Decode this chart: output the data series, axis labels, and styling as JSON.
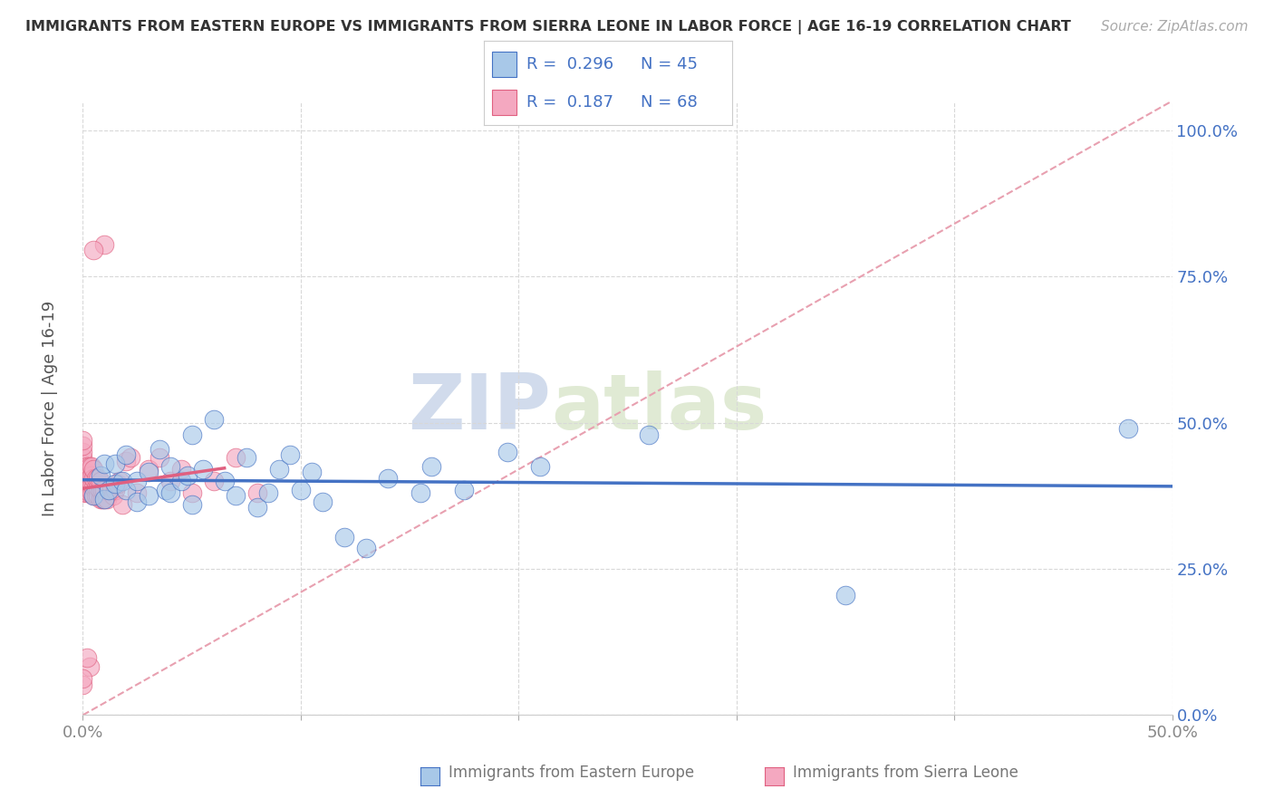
{
  "title": "IMMIGRANTS FROM EASTERN EUROPE VS IMMIGRANTS FROM SIERRA LEONE IN LABOR FORCE | AGE 16-19 CORRELATION CHART",
  "source": "Source: ZipAtlas.com",
  "ylabel": "In Labor Force | Age 16-19",
  "xlim": [
    0.0,
    0.5
  ],
  "ylim": [
    0.0,
    1.05
  ],
  "x_ticks": [
    0.0,
    0.1,
    0.2,
    0.3,
    0.4,
    0.5
  ],
  "x_tick_labels": [
    "0.0%",
    "",
    "",
    "",
    "",
    "50.0%"
  ],
  "y_ticks": [
    0.0,
    0.25,
    0.5,
    0.75,
    1.0
  ],
  "y_tick_labels": [
    "0.0%",
    "25.0%",
    "50.0%",
    "75.0%",
    "100.0%"
  ],
  "legend1_r": "0.296",
  "legend1_n": "45",
  "legend2_r": "0.187",
  "legend2_n": "68",
  "series1_label": "Immigrants from Eastern Europe",
  "series2_label": "Immigrants from Sierra Leone",
  "series1_color": "#a8c8e8",
  "series2_color": "#f4a8c0",
  "series1_edge_color": "#4472c4",
  "series2_edge_color": "#e06080",
  "series1_line_color": "#4472c4",
  "series2_line_color": "#e06080",
  "ref_line_color": "#e8a0b0",
  "background_color": "#ffffff",
  "watermark_text": "ZIPatlas",
  "series1_x": [
    0.005,
    0.008,
    0.01,
    0.01,
    0.012,
    0.015,
    0.015,
    0.018,
    0.02,
    0.02,
    0.025,
    0.025,
    0.03,
    0.03,
    0.035,
    0.038,
    0.04,
    0.04,
    0.045,
    0.048,
    0.05,
    0.05,
    0.055,
    0.06,
    0.065,
    0.07,
    0.075,
    0.08,
    0.085,
    0.09,
    0.095,
    0.1,
    0.105,
    0.11,
    0.12,
    0.13,
    0.14,
    0.155,
    0.16,
    0.175,
    0.195,
    0.21,
    0.26,
    0.35,
    0.48
  ],
  "series1_y": [
    0.375,
    0.41,
    0.37,
    0.43,
    0.385,
    0.395,
    0.43,
    0.4,
    0.385,
    0.445,
    0.365,
    0.4,
    0.375,
    0.415,
    0.455,
    0.385,
    0.38,
    0.425,
    0.4,
    0.41,
    0.48,
    0.36,
    0.42,
    0.505,
    0.4,
    0.375,
    0.44,
    0.355,
    0.38,
    0.42,
    0.445,
    0.385,
    0.415,
    0.365,
    0.305,
    0.285,
    0.405,
    0.38,
    0.425,
    0.385,
    0.45,
    0.425,
    0.48,
    0.205,
    0.49
  ],
  "series2_x": [
    0.0,
    0.0,
    0.0,
    0.0,
    0.0,
    0.0,
    0.0,
    0.0,
    0.0,
    0.0,
    0.001,
    0.001,
    0.001,
    0.001,
    0.002,
    0.002,
    0.002,
    0.002,
    0.003,
    0.003,
    0.003,
    0.003,
    0.004,
    0.004,
    0.004,
    0.004,
    0.005,
    0.005,
    0.005,
    0.005,
    0.006,
    0.006,
    0.006,
    0.007,
    0.007,
    0.007,
    0.008,
    0.008,
    0.008,
    0.009,
    0.009,
    0.01,
    0.01,
    0.011,
    0.012,
    0.013,
    0.014,
    0.015,
    0.016,
    0.017,
    0.018,
    0.02,
    0.022,
    0.025,
    0.03,
    0.035,
    0.04,
    0.045,
    0.05,
    0.06,
    0.07,
    0.08,
    0.01,
    0.005,
    0.003,
    0.002,
    0.0,
    0.0
  ],
  "series2_y": [
    0.38,
    0.39,
    0.4,
    0.41,
    0.42,
    0.43,
    0.44,
    0.45,
    0.46,
    0.47,
    0.385,
    0.395,
    0.405,
    0.415,
    0.38,
    0.395,
    0.41,
    0.425,
    0.38,
    0.395,
    0.41,
    0.425,
    0.38,
    0.395,
    0.41,
    0.425,
    0.375,
    0.39,
    0.405,
    0.42,
    0.375,
    0.39,
    0.405,
    0.375,
    0.39,
    0.405,
    0.37,
    0.385,
    0.4,
    0.37,
    0.385,
    0.37,
    0.385,
    0.37,
    0.385,
    0.39,
    0.375,
    0.385,
    0.395,
    0.4,
    0.36,
    0.435,
    0.44,
    0.38,
    0.42,
    0.44,
    0.4,
    0.42,
    0.38,
    0.4,
    0.44,
    0.38,
    0.805,
    0.795,
    0.082,
    0.098,
    0.052,
    0.062
  ],
  "series2_reg_xlim": [
    0.0,
    0.065
  ]
}
